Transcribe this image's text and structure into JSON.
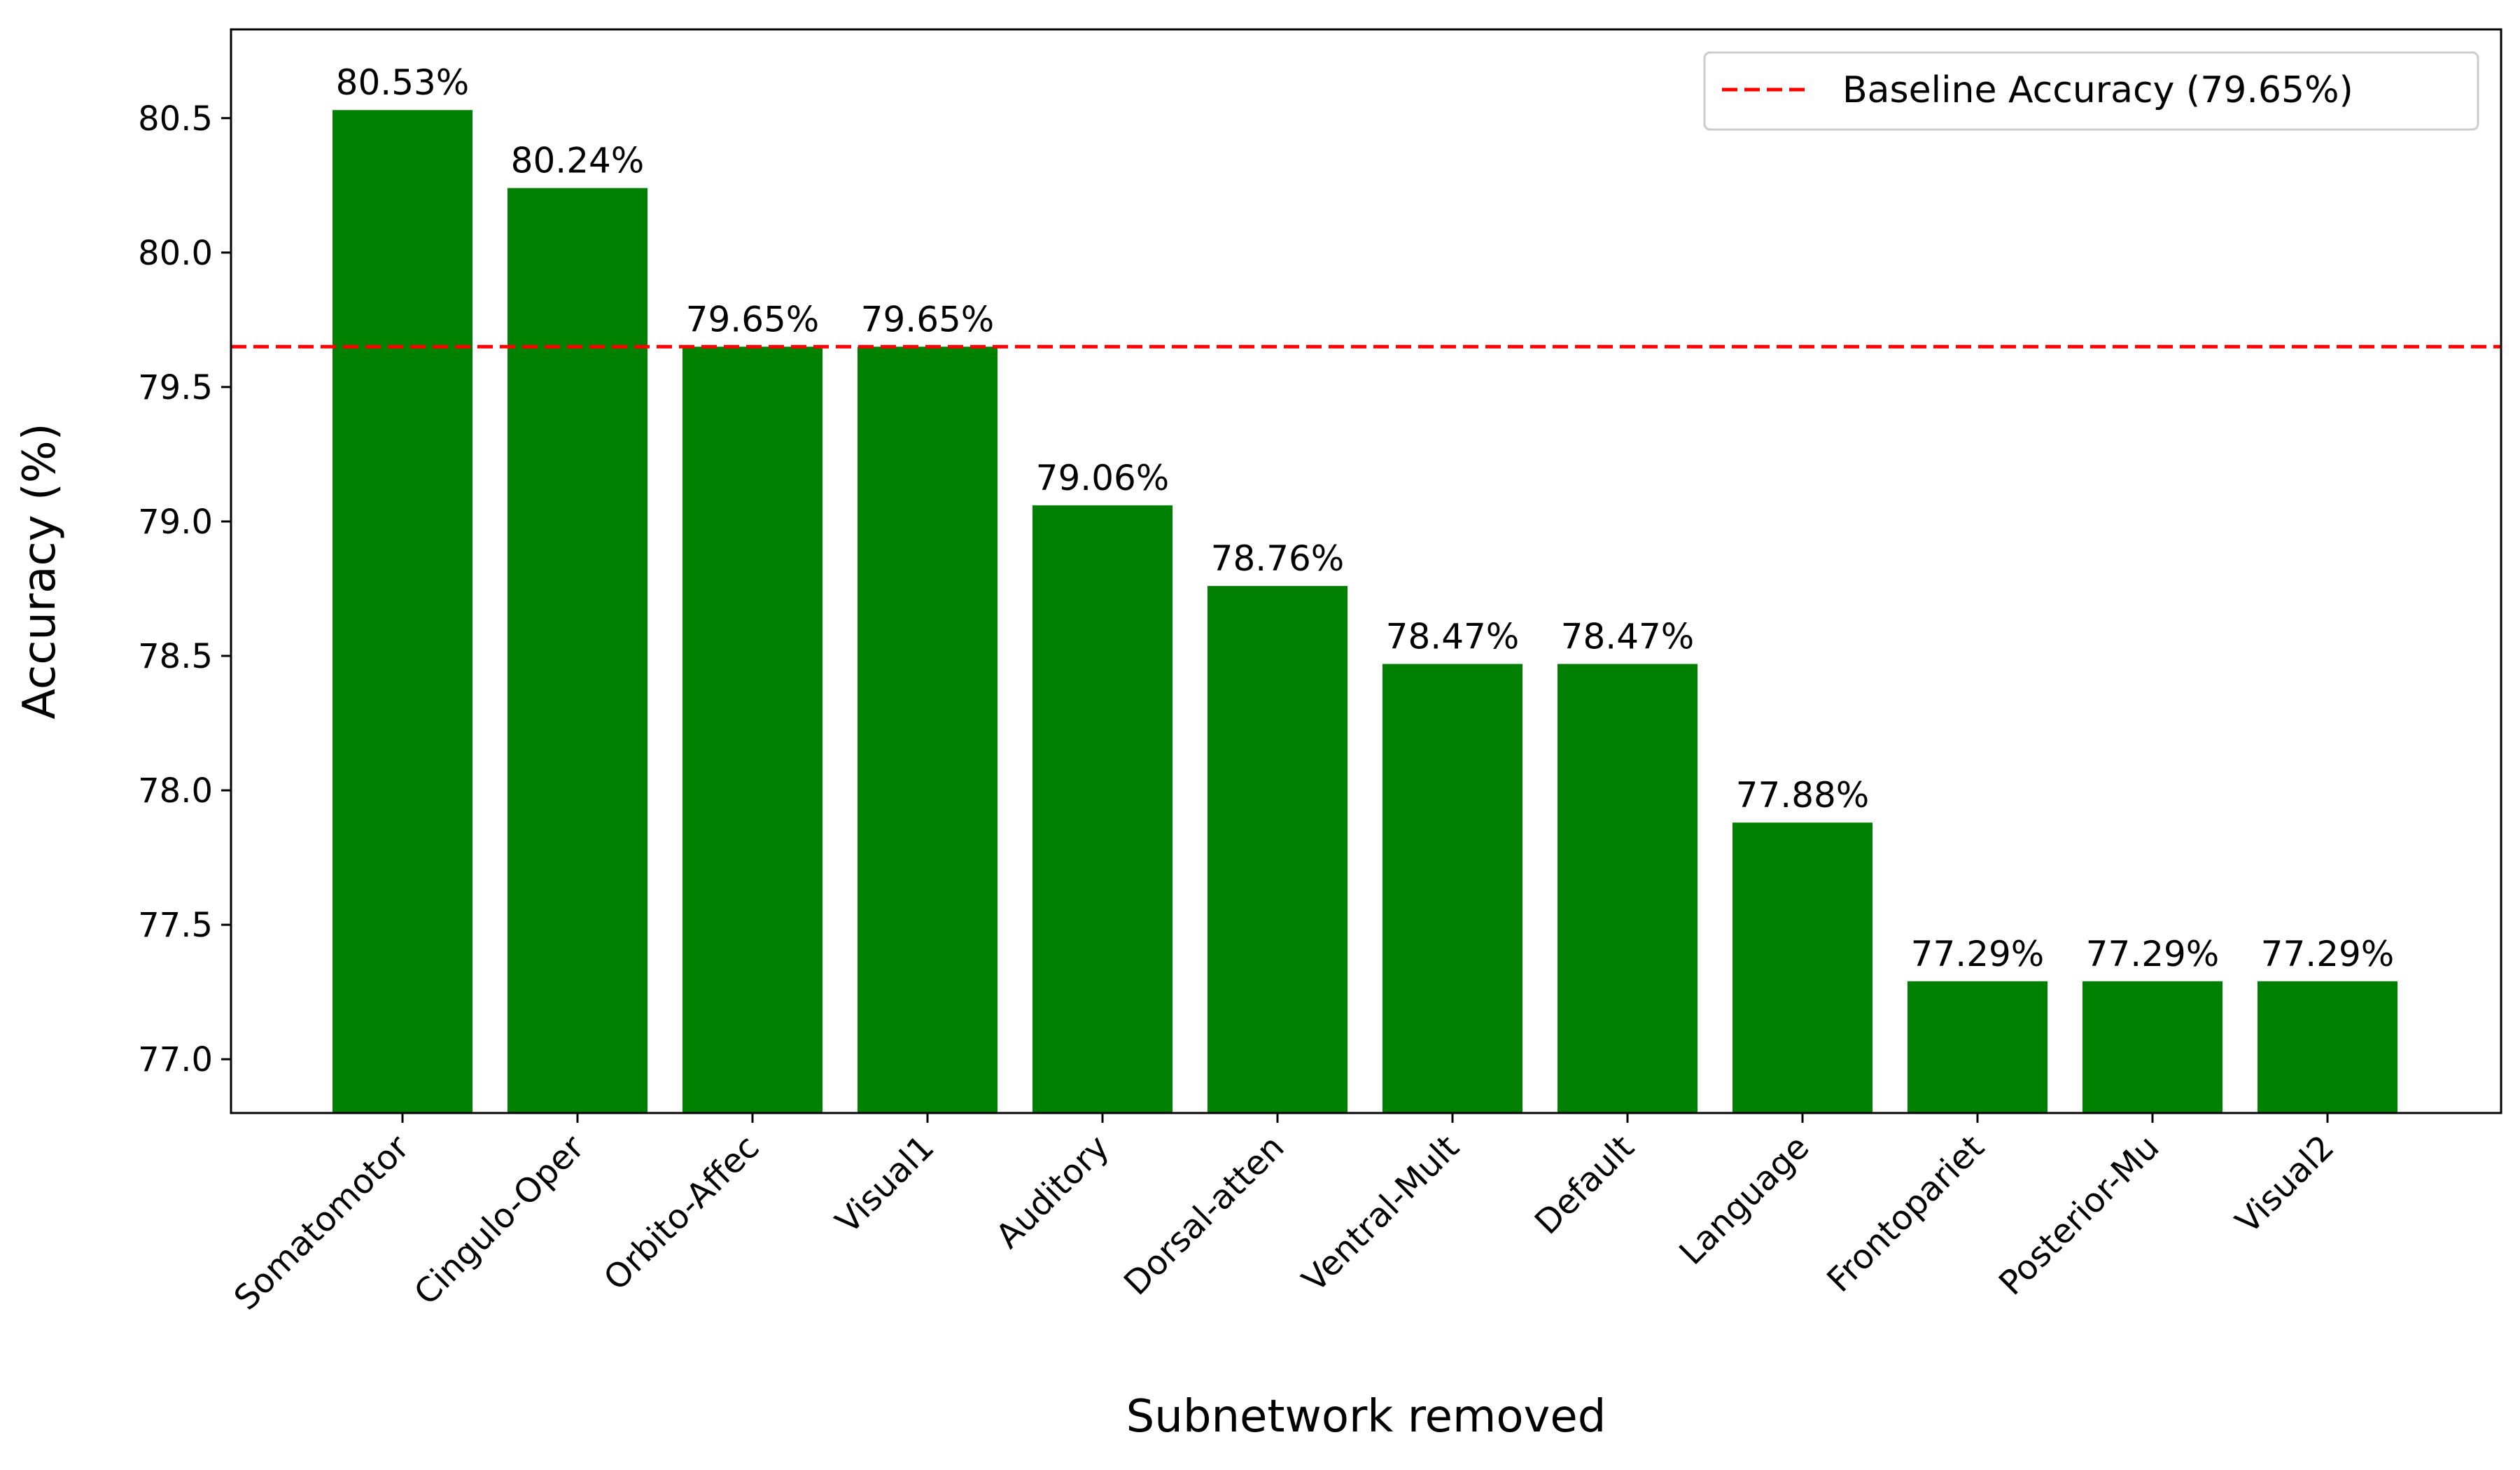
{
  "chart_data": {
    "type": "bar",
    "xlabel": "Subnetwork removed",
    "ylabel": "Accuracy (%)",
    "ylim": [
      76.8,
      80.83
    ],
    "yticks": [
      77.0,
      77.5,
      78.0,
      78.5,
      79.0,
      79.5,
      80.0,
      80.5
    ],
    "ytick_labels": [
      "77.0",
      "77.5",
      "78.0",
      "78.5",
      "79.0",
      "79.5",
      "80.0",
      "80.5"
    ],
    "categories": [
      "Somatomotor",
      "Cingulo-Oper",
      "Orbito-Affec",
      "Visual1",
      "Auditory",
      "Dorsal-atten",
      "Ventral-Mult",
      "Default",
      "Language",
      "Frontopariet",
      "Posterior-Mu",
      "Visual2"
    ],
    "values": [
      80.53,
      80.24,
      79.65,
      79.65,
      79.06,
      78.76,
      78.47,
      78.47,
      77.88,
      77.29,
      77.29,
      77.29
    ],
    "data_labels": [
      "80.53%",
      "80.24%",
      "79.65%",
      "79.65%",
      "79.06%",
      "78.76%",
      "78.47%",
      "78.47%",
      "77.88%",
      "77.29%",
      "77.29%",
      "77.29%"
    ],
    "bar_color": "#008000",
    "baseline": {
      "value": 79.65,
      "label": "Baseline Accuracy (79.65%)",
      "color": "#ff0000",
      "style": "dashed"
    },
    "grid": false,
    "legend_position": "top-right"
  }
}
